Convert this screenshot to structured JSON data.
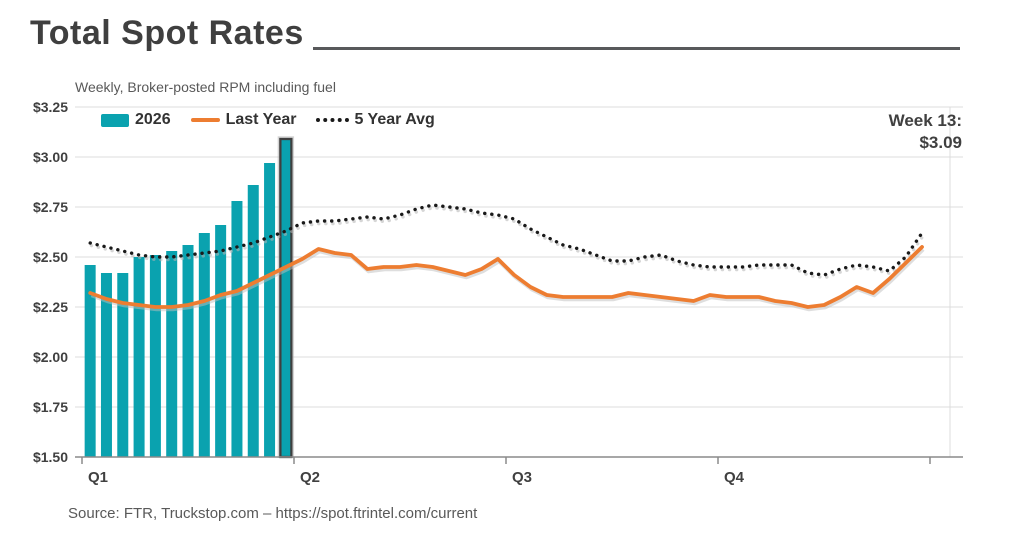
{
  "header": {
    "title": "Total Spot Rates",
    "subtitle": "Weekly, Broker-posted RPM including fuel"
  },
  "legend": [
    {
      "label": "2026",
      "swatch": "bar"
    },
    {
      "label": "Last Year",
      "swatch": "line"
    },
    {
      "label": "5 Year Avg",
      "swatch": "dotted"
    }
  ],
  "annotation": {
    "line1": "Week 13:",
    "line2": "$3.09"
  },
  "source": "Source: FTR, Truckstop.com – https://spot.ftrintel.com/current",
  "colors": {
    "teal": "#0aa2af",
    "orange": "#ed7d31",
    "dotted": "#1a1a1a",
    "text_dark": "#404040",
    "text_gray": "#595959",
    "grid": "#dcdcdc",
    "axis": "#8a8a8a",
    "highlight_border": "#3f3f3f"
  },
  "chart_data": {
    "type": "bar",
    "title": "Total Spot Rates",
    "subtitle": "Weekly, Broker-posted RPM including fuel",
    "xlabel": "",
    "ylabel": "Broker-posted RPM including fuel ($)",
    "ylim": [
      1.5,
      3.25
    ],
    "y_ticks": [
      {
        "label": "$3.25",
        "value": 3.25
      },
      {
        "label": "$3.00",
        "value": 3.0
      },
      {
        "label": "$2.75",
        "value": 2.75
      },
      {
        "label": "$2.50",
        "value": 2.5
      },
      {
        "label": "$2.25",
        "value": 2.25
      },
      {
        "label": "$2.00",
        "value": 2.0
      },
      {
        "label": "$1.75",
        "value": 1.75
      },
      {
        "label": "$1.50",
        "value": 1.5
      }
    ],
    "x_ticks": [
      "Q1",
      "Q2",
      "Q3",
      "Q4"
    ],
    "weeks_per_quarter": 13,
    "total_weeks": 52,
    "grid": "horizontal-only",
    "legend_position": "top-left",
    "series": [
      {
        "name": "2026",
        "type": "bar",
        "weeks": [
          1,
          2,
          3,
          4,
          5,
          6,
          7,
          8,
          9,
          10,
          11,
          12,
          13
        ],
        "values": [
          2.46,
          2.42,
          2.42,
          2.5,
          2.51,
          2.53,
          2.56,
          2.62,
          2.66,
          2.78,
          2.86,
          2.97,
          3.09
        ]
      },
      {
        "name": "Last Year",
        "type": "line",
        "values": [
          2.32,
          2.29,
          2.27,
          2.26,
          2.25,
          2.25,
          2.26,
          2.28,
          2.31,
          2.33,
          2.37,
          2.41,
          2.45,
          2.49,
          2.54,
          2.52,
          2.51,
          2.44,
          2.45,
          2.45,
          2.46,
          2.45,
          2.43,
          2.41,
          2.44,
          2.49,
          2.41,
          2.35,
          2.31,
          2.3,
          2.3,
          2.3,
          2.3,
          2.32,
          2.31,
          2.3,
          2.29,
          2.28,
          2.31,
          2.3,
          2.3,
          2.3,
          2.28,
          2.27,
          2.25,
          2.26,
          2.3,
          2.35,
          2.32,
          2.39,
          2.47,
          2.55
        ]
      },
      {
        "name": "5 Year Avg",
        "type": "dotted-line",
        "values": [
          2.57,
          2.55,
          2.53,
          2.51,
          2.5,
          2.5,
          2.51,
          2.52,
          2.53,
          2.55,
          2.57,
          2.6,
          2.63,
          2.67,
          2.68,
          2.68,
          2.69,
          2.7,
          2.69,
          2.71,
          2.74,
          2.76,
          2.75,
          2.74,
          2.72,
          2.71,
          2.69,
          2.64,
          2.6,
          2.56,
          2.54,
          2.51,
          2.48,
          2.48,
          2.5,
          2.51,
          2.48,
          2.46,
          2.45,
          2.45,
          2.45,
          2.46,
          2.46,
          2.46,
          2.42,
          2.41,
          2.44,
          2.46,
          2.45,
          2.43,
          2.5,
          2.62
        ]
      }
    ],
    "highlight": {
      "week": 13,
      "label": "Week 13:",
      "value_label": "$3.09",
      "value": 3.09
    }
  }
}
